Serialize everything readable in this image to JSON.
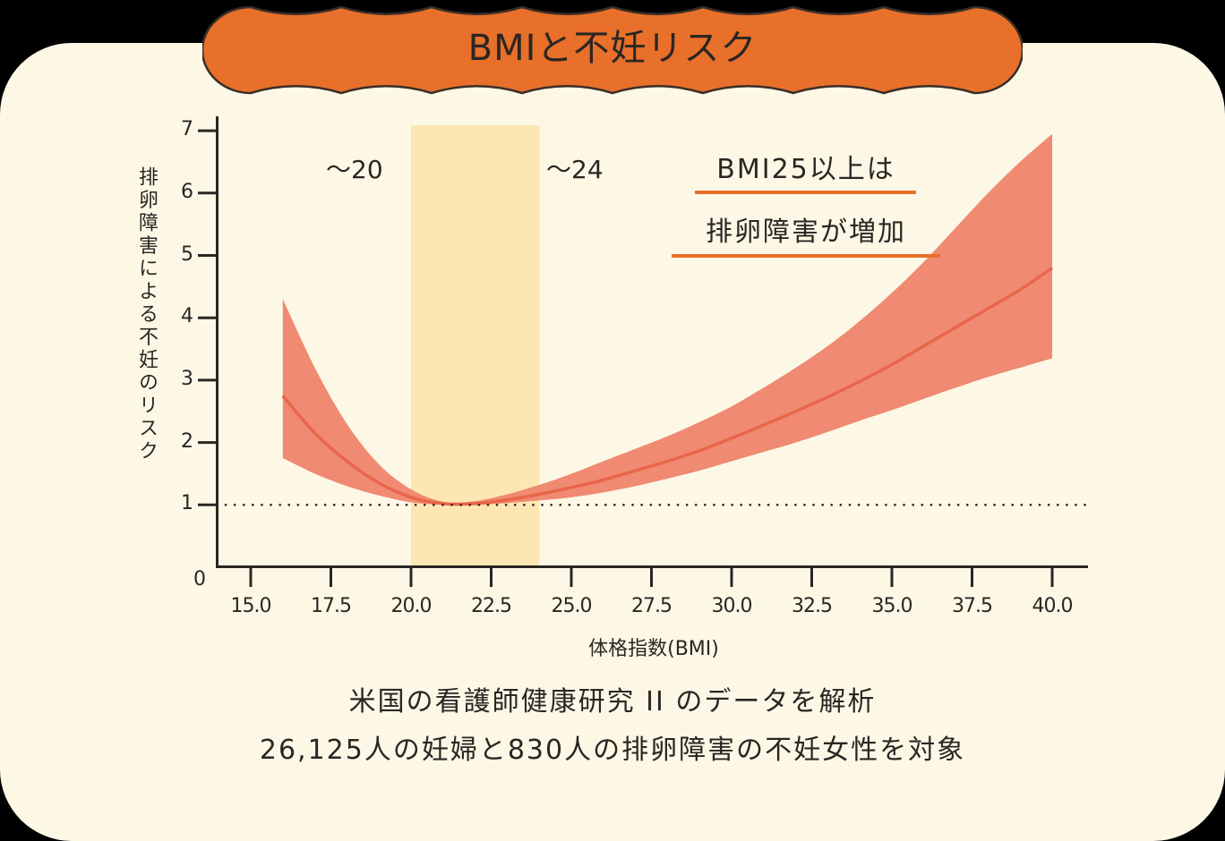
{
  "title": "BMIと不妊リスク",
  "colors": {
    "background_card": "#fdf8e6",
    "banner": "#e8702a",
    "banner_outline": "#3a2e28",
    "ci_band": "#f08a72",
    "center_line": "#e8664a",
    "normal_range": "#fde6b2",
    "text": "#2b2623",
    "underline": "#e8702a"
  },
  "annotations": {
    "range_low": "～20",
    "range_high": "～24",
    "note_line1": "BMI25以上は",
    "note_line2": "排卵障害が増加"
  },
  "captions": {
    "line1": "米国の看護師健康研究 II のデータを解析",
    "line2": "26,125人の妊婦と830人の排卵障害の不妊女性を対象"
  },
  "chart_data": {
    "type": "line",
    "title": "BMIと不妊リスク",
    "xlabel": "体格指数(BMI)",
    "ylabel": "排卵障害による不妊のリスク",
    "xlim": [
      13.2,
      41.2
    ],
    "ylim": [
      0,
      7
    ],
    "x_ticks": [
      "15.0",
      "17.5",
      "20.0",
      "22.5",
      "25.0",
      "27.5",
      "30.0",
      "32.5",
      "35.0",
      "37.5",
      "40.0"
    ],
    "y_ticks": [
      "0",
      "1",
      "2",
      "3",
      "4",
      "5",
      "6",
      "7"
    ],
    "reference_line": {
      "y": 1,
      "style": "dotted"
    },
    "highlight_band": {
      "x_from": 20,
      "x_to": 24,
      "label_left": "～20",
      "label_right": "～24"
    },
    "x": [
      16,
      17,
      18,
      19,
      20,
      21,
      22,
      23,
      24,
      25,
      26,
      27,
      28,
      29,
      30,
      31,
      32,
      33,
      34,
      35,
      36,
      37,
      38,
      39,
      40
    ],
    "series": [
      {
        "name": "risk_estimate",
        "values": [
          2.75,
          2.15,
          1.7,
          1.35,
          1.12,
          1.02,
          1.02,
          1.08,
          1.17,
          1.28,
          1.4,
          1.55,
          1.7,
          1.87,
          2.07,
          2.28,
          2.5,
          2.73,
          2.98,
          3.25,
          3.55,
          3.85,
          4.15,
          4.45,
          4.8
        ]
      },
      {
        "name": "ci_upper",
        "values": [
          4.3,
          3.2,
          2.3,
          1.65,
          1.25,
          1.05,
          1.06,
          1.17,
          1.32,
          1.5,
          1.7,
          1.9,
          2.1,
          2.33,
          2.58,
          2.88,
          3.2,
          3.55,
          3.95,
          4.4,
          4.9,
          5.45,
          6.0,
          6.5,
          6.95
        ]
      },
      {
        "name": "ci_lower",
        "values": [
          1.75,
          1.5,
          1.3,
          1.15,
          1.04,
          1.0,
          1.0,
          1.03,
          1.07,
          1.12,
          1.2,
          1.3,
          1.42,
          1.55,
          1.7,
          1.85,
          2.0,
          2.17,
          2.35,
          2.52,
          2.7,
          2.88,
          3.05,
          3.2,
          3.35
        ]
      }
    ]
  }
}
